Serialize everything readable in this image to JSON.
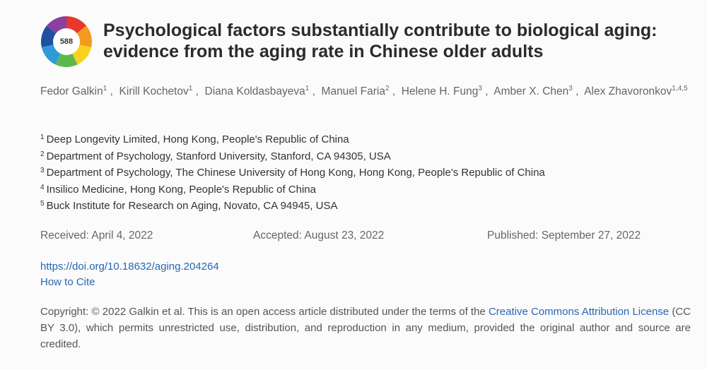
{
  "badge": {
    "score": "588"
  },
  "title": "Psychological factors substantially contribute to biological aging: evidence from the aging rate in Chinese older adults",
  "authors": [
    {
      "name": "Fedor Galkin",
      "sup": "1"
    },
    {
      "name": "Kirill Kochetov",
      "sup": "1"
    },
    {
      "name": "Diana Koldasbayeva",
      "sup": "1"
    },
    {
      "name": "Manuel Faria",
      "sup": "2"
    },
    {
      "name": "Helene H. Fung",
      "sup": "3"
    },
    {
      "name": "Amber X. Chen",
      "sup": "3"
    },
    {
      "name": "Alex Zhavoronkov",
      "sup": "1,4,5"
    }
  ],
  "affiliations": [
    {
      "num": "1",
      "text": "Deep Longevity Limited, Hong Kong, People's Republic of China"
    },
    {
      "num": "2",
      "text": "Department of Psychology, Stanford University, Stanford, CA 94305, USA"
    },
    {
      "num": "3",
      "text": "Department of Psychology, The Chinese University of Hong Kong, Hong Kong, People's Republic of China"
    },
    {
      "num": "4",
      "text": "Insilico Medicine, Hong Kong, People's Republic of China"
    },
    {
      "num": "5",
      "text": "Buck Institute for Research on Aging, Novato, CA 94945, USA"
    }
  ],
  "dates": {
    "received": "Received: April 4, 2022",
    "accepted": "Accepted: August 23, 2022",
    "published": "Published: September 27, 2022"
  },
  "links": {
    "doi": "https://doi.org/10.18632/aging.204264",
    "cite": "How to Cite"
  },
  "copyright": {
    "before": "Copyright: © 2022 Galkin et al. This is an open access article distributed under the terms of the ",
    "link": "Creative Commons Attribution License",
    "after": " (CC BY 3.0), which permits unrestricted use, distribution, and reproduction in any medium, provided the original author and source are credited."
  },
  "colors": {
    "link": "#2867b3",
    "title": "#2b2b2b",
    "badge_ring": [
      "#e8372c",
      "#f39a1f",
      "#f5d320",
      "#5db84c",
      "#2f9bd6",
      "#1f4fa0",
      "#8b3fa0"
    ]
  }
}
